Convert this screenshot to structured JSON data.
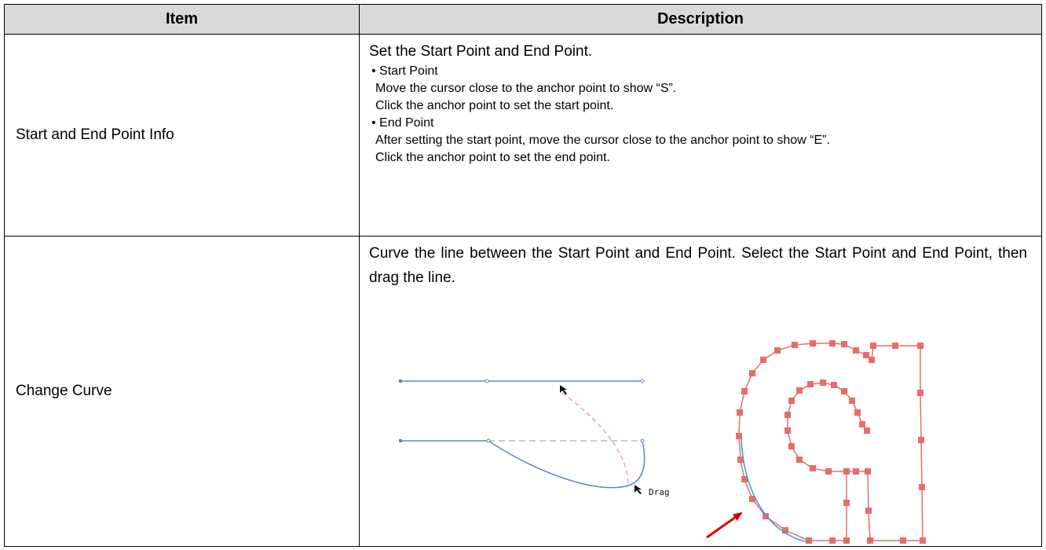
{
  "table": {
    "headers": [
      "Item",
      "Description"
    ],
    "rows": [
      {
        "item": "Start and End Point Info",
        "description": [
          "Set the Start Point and End Point.",
          "• Start Point",
          "Move the cursor close to the anchor point to show “S”.",
          "Click the anchor point to set the start point.",
          "• End Point",
          "After setting the start point, move the cursor close to the anchor point to show “E”.",
          "Click the anchor point to set the end point."
        ]
      },
      {
        "item": "Change Curve",
        "description": [
          "Curve the line between the Start Point and End Point. Select the Start Point and End Point, then drag the line."
        ],
        "figure_label": "Drag"
      }
    ]
  }
}
